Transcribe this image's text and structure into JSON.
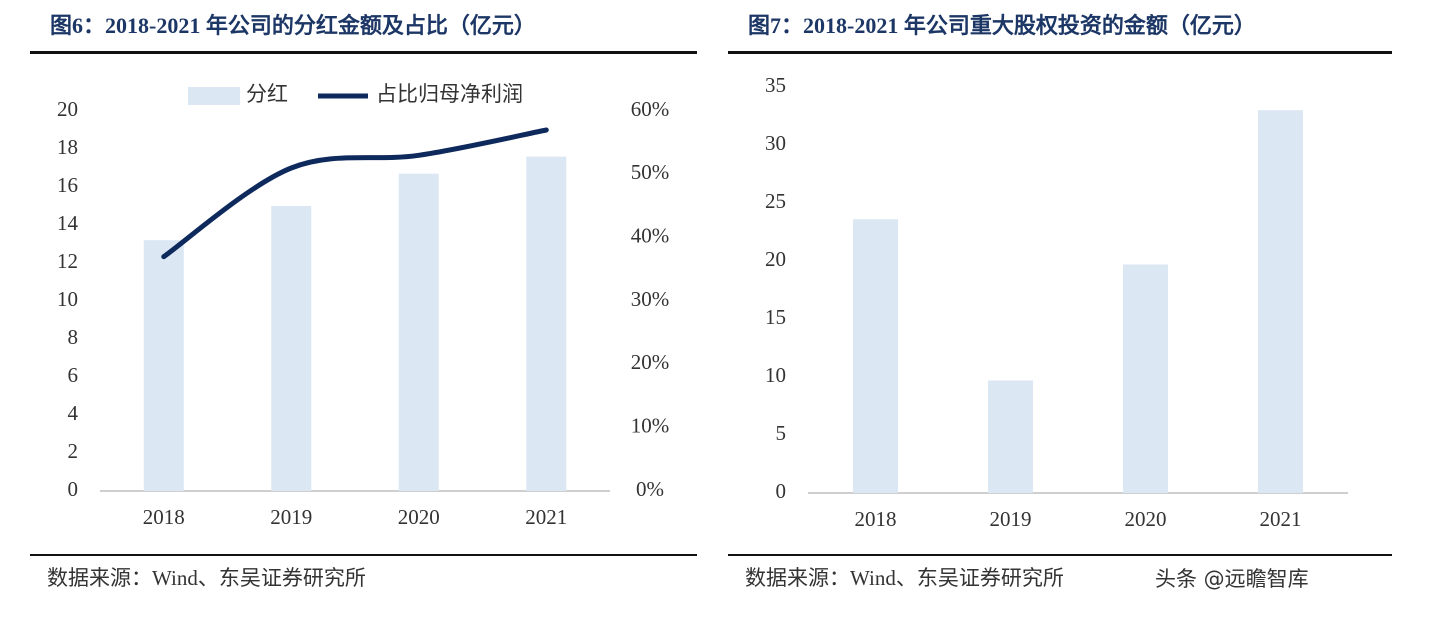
{
  "chart_data": [
    {
      "type": "bar",
      "title": "图6：2018-2021 年公司的分红金额及占比（亿元）",
      "categories": [
        "2018",
        "2019",
        "2020",
        "2021"
      ],
      "series": [
        {
          "name": "分红",
          "type": "bar",
          "color": "#dce7f4",
          "values": [
            13.2,
            15.0,
            16.7,
            17.6
          ]
        },
        {
          "name": "占比归母净利润",
          "type": "line",
          "axis": "y2",
          "color": "#0e2a5c",
          "values": [
            37,
            51,
            53,
            57
          ]
        }
      ],
      "ylim": [
        0,
        20
      ],
      "yticks": [
        0,
        2,
        4,
        6,
        8,
        10,
        12,
        14,
        16,
        18,
        20
      ],
      "y2lim": [
        0,
        60
      ],
      "y2ticks": [
        {
          "value": 0,
          "label": "0%"
        },
        {
          "value": 10,
          "label": "10%"
        },
        {
          "value": 20,
          "label": "20%"
        },
        {
          "value": 30,
          "label": "30%"
        },
        {
          "value": 40,
          "label": "40%"
        },
        {
          "value": 50,
          "label": "50%"
        },
        {
          "value": 60,
          "label": "60%"
        }
      ],
      "legend": "top",
      "source": "数据来源：Wind、东吴证券研究所"
    },
    {
      "type": "bar",
      "title": "图7：2018-2021 年公司重大股权投资的金额（亿元）",
      "categories": [
        "2018",
        "2019",
        "2020",
        "2021"
      ],
      "values": [
        23.6,
        9.7,
        19.7,
        33.0
      ],
      "color": "#dce7f4",
      "ylim": [
        0,
        35
      ],
      "yticks": [
        0,
        5,
        10,
        15,
        20,
        25,
        30,
        35
      ],
      "source": "数据来源：Wind、东吴证券研究所"
    }
  ],
  "watermark": "头条 @远瞻智库"
}
